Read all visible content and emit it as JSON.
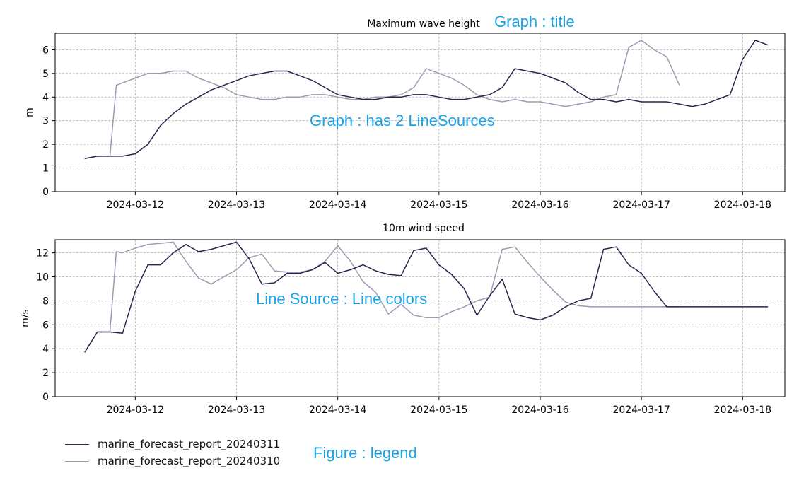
{
  "annotations": {
    "title_note": "Graph : title",
    "lines_note": "Graph : has 2 LineSources",
    "colors_note": "Line Source : Line colors",
    "legend_note": "Figure : legend"
  },
  "legend": {
    "items": [
      {
        "label": "marine_forecast_report_20240311",
        "color": "#26264f"
      },
      {
        "label": "marine_forecast_report_20240310",
        "color": "#9d9bb2"
      }
    ]
  },
  "chart_data": [
    {
      "type": "line",
      "title": "Maximum wave height",
      "xlabel": "",
      "ylabel": "m",
      "ylim": [
        0,
        6.7
      ],
      "yticks": [
        0,
        1,
        2,
        3,
        4,
        5,
        6
      ],
      "xlim": [
        "2024-03-11 05:00",
        "2024-03-18 10:00"
      ],
      "xticks": [
        "2024-03-12",
        "2024-03-13",
        "2024-03-14",
        "2024-03-15",
        "2024-03-16",
        "2024-03-17",
        "2024-03-18"
      ],
      "grid": true,
      "series": [
        {
          "name": "marine_forecast_report_20240311",
          "color": "#26264f",
          "x": [
            "2024-03-11 12:00",
            "2024-03-11 15:00",
            "2024-03-11 18:00",
            "2024-03-11 21:00",
            "2024-03-12 00:00",
            "2024-03-12 03:00",
            "2024-03-12 06:00",
            "2024-03-12 09:00",
            "2024-03-12 12:00",
            "2024-03-12 15:00",
            "2024-03-12 18:00",
            "2024-03-12 21:00",
            "2024-03-13 00:00",
            "2024-03-13 03:00",
            "2024-03-13 06:00",
            "2024-03-13 09:00",
            "2024-03-13 12:00",
            "2024-03-13 15:00",
            "2024-03-13 18:00",
            "2024-03-13 21:00",
            "2024-03-14 00:00",
            "2024-03-14 03:00",
            "2024-03-14 06:00",
            "2024-03-14 09:00",
            "2024-03-14 12:00",
            "2024-03-14 15:00",
            "2024-03-14 18:00",
            "2024-03-14 21:00",
            "2024-03-15 00:00",
            "2024-03-15 03:00",
            "2024-03-15 06:00",
            "2024-03-15 09:00",
            "2024-03-15 12:00",
            "2024-03-15 15:00",
            "2024-03-15 18:00",
            "2024-03-15 21:00",
            "2024-03-16 00:00",
            "2024-03-16 03:00",
            "2024-03-16 06:00",
            "2024-03-16 09:00",
            "2024-03-16 12:00",
            "2024-03-16 15:00",
            "2024-03-16 18:00",
            "2024-03-16 21:00",
            "2024-03-17 00:00",
            "2024-03-17 03:00",
            "2024-03-17 06:00",
            "2024-03-17 09:00",
            "2024-03-17 12:00",
            "2024-03-17 15:00",
            "2024-03-17 18:00",
            "2024-03-17 21:00",
            "2024-03-18 00:00",
            "2024-03-18 03:00",
            "2024-03-18 06:00"
          ],
          "values": [
            1.4,
            1.5,
            1.5,
            1.5,
            1.6,
            2.0,
            2.8,
            3.3,
            3.7,
            4.0,
            4.3,
            4.5,
            4.7,
            4.9,
            5.0,
            5.1,
            5.1,
            4.9,
            4.7,
            4.4,
            4.1,
            4.0,
            3.9,
            3.9,
            4.0,
            4.0,
            4.1,
            4.1,
            4.0,
            3.9,
            3.9,
            4.0,
            4.1,
            4.4,
            5.2,
            5.1,
            5.0,
            4.8,
            4.6,
            4.2,
            3.9,
            3.9,
            3.8,
            3.9,
            3.8,
            3.8,
            3.8,
            3.7,
            3.6,
            3.7,
            3.9,
            4.1,
            5.6,
            6.4,
            6.2
          ]
        },
        {
          "name": "marine_forecast_report_20240310",
          "color": "#9d9bb2",
          "x": [
            "2024-03-11 12:00",
            "2024-03-11 15:00",
            "2024-03-11 18:00",
            "2024-03-11 19:30",
            "2024-03-11 21:00",
            "2024-03-12 00:00",
            "2024-03-12 03:00",
            "2024-03-12 06:00",
            "2024-03-12 09:00",
            "2024-03-12 12:00",
            "2024-03-12 15:00",
            "2024-03-12 18:00",
            "2024-03-12 21:00",
            "2024-03-13 00:00",
            "2024-03-13 03:00",
            "2024-03-13 06:00",
            "2024-03-13 09:00",
            "2024-03-13 12:00",
            "2024-03-13 15:00",
            "2024-03-13 18:00",
            "2024-03-13 21:00",
            "2024-03-14 00:00",
            "2024-03-14 03:00",
            "2024-03-14 06:00",
            "2024-03-14 09:00",
            "2024-03-14 12:00",
            "2024-03-14 15:00",
            "2024-03-14 18:00",
            "2024-03-14 21:00",
            "2024-03-15 00:00",
            "2024-03-15 03:00",
            "2024-03-15 06:00",
            "2024-03-15 09:00",
            "2024-03-15 12:00",
            "2024-03-15 15:00",
            "2024-03-15 18:00",
            "2024-03-15 21:00",
            "2024-03-16 00:00",
            "2024-03-16 03:00",
            "2024-03-16 06:00",
            "2024-03-16 09:00",
            "2024-03-16 12:00",
            "2024-03-16 15:00",
            "2024-03-16 18:00",
            "2024-03-16 21:00",
            "2024-03-17 00:00",
            "2024-03-17 03:00",
            "2024-03-17 06:00",
            "2024-03-17 09:00"
          ],
          "values": [
            1.4,
            1.5,
            1.5,
            4.5,
            4.6,
            4.8,
            5.0,
            5.0,
            5.1,
            5.1,
            4.8,
            4.6,
            4.4,
            4.1,
            4.0,
            3.9,
            3.9,
            4.0,
            4.0,
            4.1,
            4.1,
            4.0,
            3.9,
            3.9,
            4.0,
            4.0,
            4.1,
            4.4,
            5.2,
            5.0,
            4.8,
            4.5,
            4.1,
            3.9,
            3.8,
            3.9,
            3.8,
            3.8,
            3.7,
            3.6,
            3.7,
            3.8,
            4.0,
            4.1,
            6.1,
            6.4,
            6.0,
            5.7,
            4.5
          ]
        }
      ]
    },
    {
      "type": "line",
      "title": "10m wind speed",
      "xlabel": "",
      "ylabel": "m/s",
      "ylim": [
        0,
        13.1
      ],
      "yticks": [
        0,
        2,
        4,
        6,
        8,
        10,
        12
      ],
      "xlim": [
        "2024-03-11 05:00",
        "2024-03-18 10:00"
      ],
      "xticks": [
        "2024-03-12",
        "2024-03-13",
        "2024-03-14",
        "2024-03-15",
        "2024-03-16",
        "2024-03-17",
        "2024-03-18"
      ],
      "grid": true,
      "series": [
        {
          "name": "marine_forecast_report_20240311",
          "color": "#26264f",
          "x": [
            "2024-03-11 12:00",
            "2024-03-11 15:00",
            "2024-03-11 18:00",
            "2024-03-11 21:00",
            "2024-03-12 00:00",
            "2024-03-12 03:00",
            "2024-03-12 06:00",
            "2024-03-12 09:00",
            "2024-03-12 12:00",
            "2024-03-12 15:00",
            "2024-03-12 18:00",
            "2024-03-12 21:00",
            "2024-03-13 00:00",
            "2024-03-13 03:00",
            "2024-03-13 06:00",
            "2024-03-13 09:00",
            "2024-03-13 12:00",
            "2024-03-13 15:00",
            "2024-03-13 18:00",
            "2024-03-13 21:00",
            "2024-03-14 00:00",
            "2024-03-14 03:00",
            "2024-03-14 06:00",
            "2024-03-14 09:00",
            "2024-03-14 12:00",
            "2024-03-14 15:00",
            "2024-03-14 18:00",
            "2024-03-14 21:00",
            "2024-03-15 00:00",
            "2024-03-15 03:00",
            "2024-03-15 06:00",
            "2024-03-15 09:00",
            "2024-03-15 12:00",
            "2024-03-15 15:00",
            "2024-03-15 18:00",
            "2024-03-15 21:00",
            "2024-03-16 00:00",
            "2024-03-16 03:00",
            "2024-03-16 06:00",
            "2024-03-16 09:00",
            "2024-03-16 12:00",
            "2024-03-16 15:00",
            "2024-03-16 18:00",
            "2024-03-16 21:00",
            "2024-03-17 00:00",
            "2024-03-17 03:00",
            "2024-03-17 06:00",
            "2024-03-17 09:00",
            "2024-03-17 12:00",
            "2024-03-17 15:00",
            "2024-03-17 18:00",
            "2024-03-17 21:00",
            "2024-03-18 00:00",
            "2024-03-18 03:00",
            "2024-03-18 06:00"
          ],
          "values": [
            3.7,
            5.4,
            5.4,
            5.3,
            8.8,
            11.0,
            11.0,
            12.0,
            12.7,
            12.1,
            12.3,
            12.6,
            12.9,
            11.5,
            9.4,
            9.5,
            10.3,
            10.3,
            10.6,
            11.2,
            10.3,
            10.6,
            11.0,
            10.5,
            10.2,
            10.1,
            12.2,
            12.4,
            11.0,
            10.2,
            9.0,
            6.8,
            8.4,
            9.8,
            6.9,
            6.6,
            6.4,
            6.8,
            7.5,
            8.0,
            8.2,
            12.3,
            12.5,
            11.0,
            10.3,
            8.8,
            7.5,
            7.5,
            7.5,
            7.5,
            7.5,
            7.5,
            7.5,
            7.5,
            7.5
          ]
        },
        {
          "name": "marine_forecast_report_20240310",
          "color": "#9d9bb2",
          "x": [
            "2024-03-11 12:00",
            "2024-03-11 15:00",
            "2024-03-11 18:00",
            "2024-03-11 19:30",
            "2024-03-11 21:00",
            "2024-03-12 00:00",
            "2024-03-12 03:00",
            "2024-03-12 06:00",
            "2024-03-12 09:00",
            "2024-03-12 12:00",
            "2024-03-12 15:00",
            "2024-03-12 18:00",
            "2024-03-12 21:00",
            "2024-03-13 00:00",
            "2024-03-13 03:00",
            "2024-03-13 06:00",
            "2024-03-13 09:00",
            "2024-03-13 12:00",
            "2024-03-13 15:00",
            "2024-03-13 18:00",
            "2024-03-13 21:00",
            "2024-03-14 00:00",
            "2024-03-14 03:00",
            "2024-03-14 06:00",
            "2024-03-14 09:00",
            "2024-03-14 12:00",
            "2024-03-14 15:00",
            "2024-03-14 18:00",
            "2024-03-14 21:00",
            "2024-03-15 00:00",
            "2024-03-15 03:00",
            "2024-03-15 06:00",
            "2024-03-15 09:00",
            "2024-03-15 12:00",
            "2024-03-15 15:00",
            "2024-03-15 18:00",
            "2024-03-15 21:00",
            "2024-03-16 00:00",
            "2024-03-16 03:00",
            "2024-03-16 06:00",
            "2024-03-16 09:00",
            "2024-03-16 12:00",
            "2024-03-16 15:00",
            "2024-03-16 18:00",
            "2024-03-16 21:00",
            "2024-03-17 00:00",
            "2024-03-17 03:00",
            "2024-03-17 06:00",
            "2024-03-17 09:00"
          ],
          "values": [
            3.7,
            5.4,
            5.4,
            12.1,
            12.0,
            12.4,
            12.7,
            12.8,
            12.9,
            11.3,
            9.9,
            9.4,
            10.0,
            10.6,
            11.6,
            11.9,
            10.5,
            10.4,
            10.4,
            10.6,
            11.3,
            12.6,
            11.3,
            9.6,
            8.7,
            6.9,
            7.7,
            6.8,
            6.6,
            6.6,
            7.1,
            7.5,
            8.0,
            8.3,
            12.3,
            12.5,
            11.2,
            10.0,
            8.9,
            7.9,
            7.6,
            7.5,
            7.5,
            7.5,
            7.5,
            7.5,
            7.5,
            7.5,
            7.5
          ]
        }
      ]
    }
  ]
}
